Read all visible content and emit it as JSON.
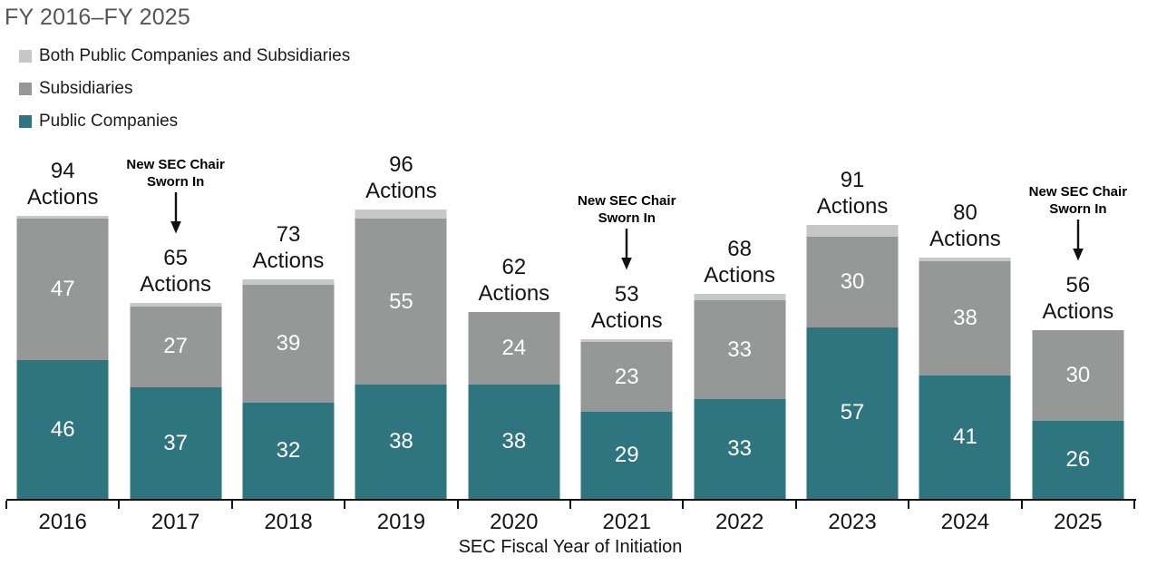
{
  "title": "FY 2016–FY 2025",
  "legend": {
    "items": [
      {
        "key": "both",
        "label": "Both Public Companies and Subsidiaries",
        "color": "#c6c8c8"
      },
      {
        "key": "subsidiaries",
        "label": "Subsidiaries",
        "color": "#969898"
      },
      {
        "key": "public-companies",
        "label": "Public Companies",
        "color": "#2f7580"
      }
    ]
  },
  "chart_data": {
    "type": "bar",
    "stacked": true,
    "title": "FY 2016–FY 2025",
    "xlabel": "SEC Fiscal Year of Initiation",
    "ylabel": "",
    "ylim": [
      0,
      100
    ],
    "grid": false,
    "legend_position": "top-left",
    "categories": [
      "2016",
      "2017",
      "2018",
      "2019",
      "2020",
      "2021",
      "2022",
      "2023",
      "2024",
      "2025"
    ],
    "series": [
      {
        "key": "public-companies",
        "name": "Public Companies",
        "color": "#2f7580",
        "values": [
          46,
          37,
          32,
          38,
          38,
          29,
          33,
          57,
          41,
          26
        ]
      },
      {
        "key": "subsidiaries",
        "name": "Subsidiaries",
        "color": "#969898",
        "values": [
          47,
          27,
          39,
          55,
          24,
          23,
          33,
          30,
          38,
          30
        ]
      },
      {
        "key": "both",
        "name": "Both Public Companies and Subsidiaries",
        "color": "#c6c8c8",
        "values": [
          1,
          1,
          2,
          3,
          0,
          1,
          2,
          4,
          1,
          0
        ]
      }
    ],
    "totals": [
      94,
      65,
      73,
      96,
      62,
      53,
      68,
      91,
      80,
      56
    ],
    "total_suffix": "Actions",
    "annotations": [
      {
        "category": "2017",
        "lines": [
          "New SEC Chair",
          "Sworn In"
        ]
      },
      {
        "category": "2021",
        "lines": [
          "New SEC Chair",
          "Sworn In"
        ]
      },
      {
        "category": "2025",
        "lines": [
          "New SEC Chair",
          "Sworn In"
        ]
      }
    ]
  },
  "style": {
    "axis_color": "#141414",
    "title_color": "#54565a",
    "bar_label_color": "#ffffff"
  }
}
